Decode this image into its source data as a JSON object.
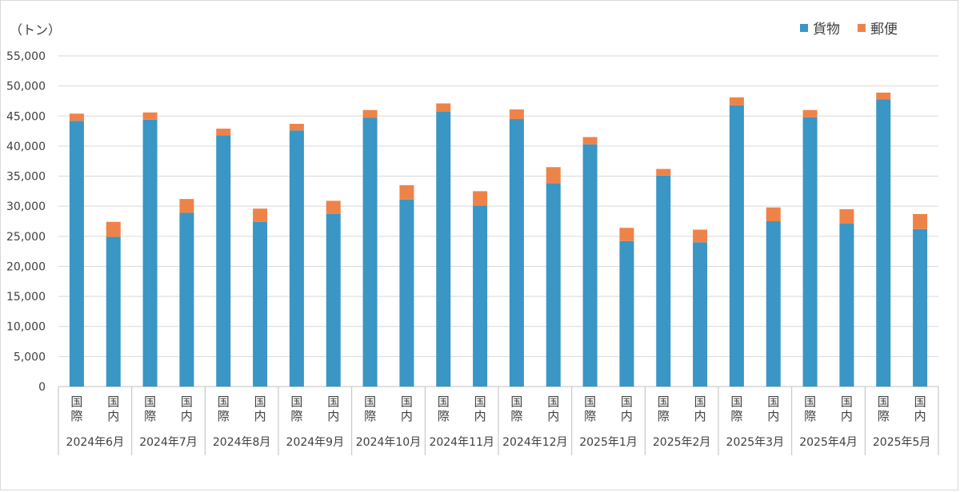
{
  "chart_data": {
    "type": "bar",
    "stacked": true,
    "unit_label": "（トン）",
    "legend": [
      {
        "name": "貨物",
        "color": "#3a96c4"
      },
      {
        "name": "郵便",
        "color": "#ee834a"
      }
    ],
    "ylim": [
      0,
      55000
    ],
    "yticks": [
      "0",
      "5,000",
      "10,000",
      "15,000",
      "20,000",
      "25,000",
      "30,000",
      "35,000",
      "40,000",
      "45,000",
      "50,000",
      "55,000"
    ],
    "categories": [
      {
        "month": "2024年6月",
        "bars": [
          {
            "label": "国際",
            "cargo": 44200,
            "mail": 1200
          },
          {
            "label": "国内",
            "cargo": 24900,
            "mail": 2500
          }
        ]
      },
      {
        "month": "2024年7月",
        "bars": [
          {
            "label": "国際",
            "cargo": 44400,
            "mail": 1200
          },
          {
            "label": "国内",
            "cargo": 28900,
            "mail": 2300
          }
        ]
      },
      {
        "month": "2024年8月",
        "bars": [
          {
            "label": "国際",
            "cargo": 41800,
            "mail": 1100
          },
          {
            "label": "国内",
            "cargo": 27400,
            "mail": 2200
          }
        ]
      },
      {
        "month": "2024年9月",
        "bars": [
          {
            "label": "国際",
            "cargo": 42600,
            "mail": 1100
          },
          {
            "label": "国内",
            "cargo": 28700,
            "mail": 2200
          }
        ]
      },
      {
        "month": "2024年10月",
        "bars": [
          {
            "label": "国際",
            "cargo": 44700,
            "mail": 1300
          },
          {
            "label": "国内",
            "cargo": 31100,
            "mail": 2400
          }
        ]
      },
      {
        "month": "2024年11月",
        "bars": [
          {
            "label": "国際",
            "cargo": 45700,
            "mail": 1400
          },
          {
            "label": "国内",
            "cargo": 30100,
            "mail": 2400
          }
        ]
      },
      {
        "month": "2024年12月",
        "bars": [
          {
            "label": "国際",
            "cargo": 44500,
            "mail": 1600
          },
          {
            "label": "国内",
            "cargo": 33800,
            "mail": 2700
          }
        ]
      },
      {
        "month": "2025年1月",
        "bars": [
          {
            "label": "国際",
            "cargo": 40300,
            "mail": 1200
          },
          {
            "label": "国内",
            "cargo": 24200,
            "mail": 2200
          }
        ]
      },
      {
        "month": "2025年2月",
        "bars": [
          {
            "label": "国際",
            "cargo": 35100,
            "mail": 1100
          },
          {
            "label": "国内",
            "cargo": 24000,
            "mail": 2100
          }
        ]
      },
      {
        "month": "2025年3月",
        "bars": [
          {
            "label": "国際",
            "cargo": 46800,
            "mail": 1300
          },
          {
            "label": "国内",
            "cargo": 27500,
            "mail": 2300
          }
        ]
      },
      {
        "month": "2025年4月",
        "bars": [
          {
            "label": "国際",
            "cargo": 44800,
            "mail": 1200
          },
          {
            "label": "国内",
            "cargo": 27100,
            "mail": 2400
          }
        ]
      },
      {
        "month": "2025年5月",
        "bars": [
          {
            "label": "国際",
            "cargo": 47800,
            "mail": 1100
          },
          {
            "label": "国内",
            "cargo": 26200,
            "mail": 2500
          }
        ]
      }
    ]
  }
}
